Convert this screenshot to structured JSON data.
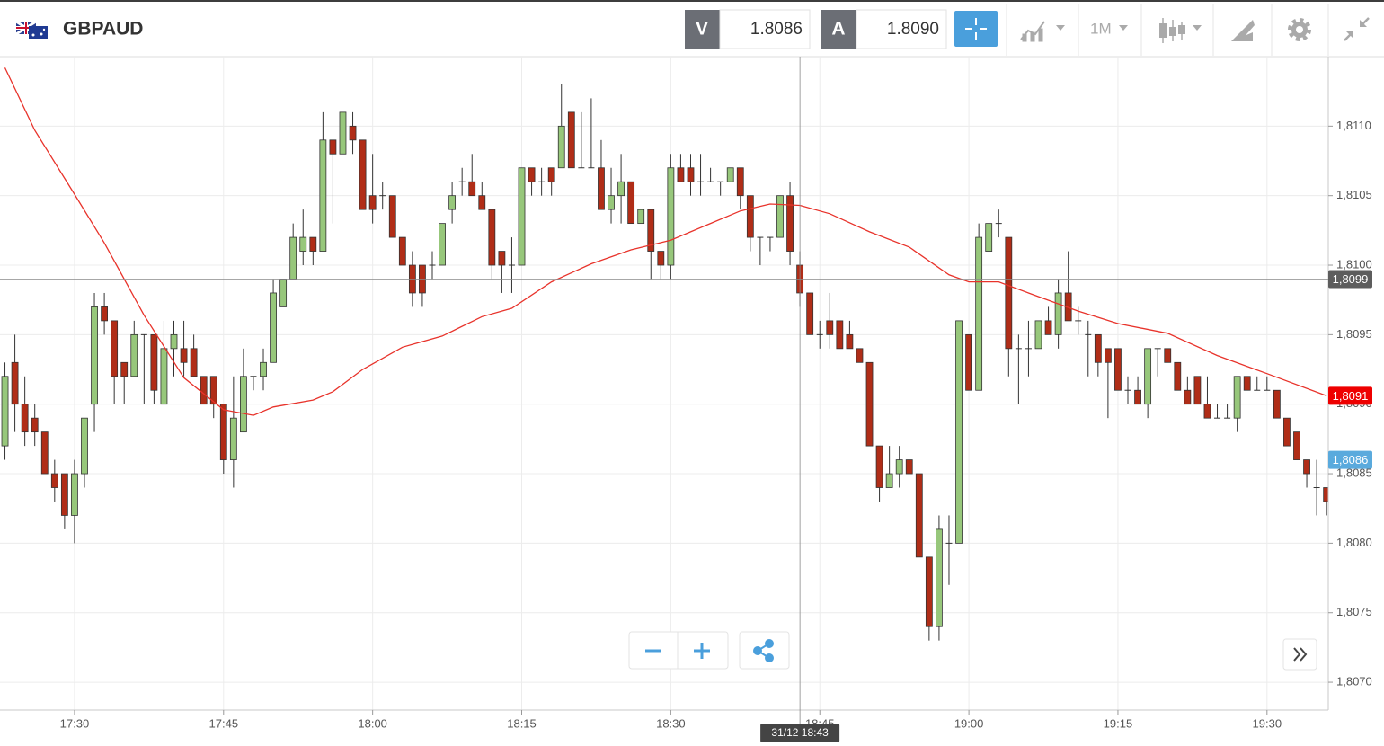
{
  "header": {
    "symbol": "GBPAUD",
    "sell_label": "V",
    "sell": "1.8086",
    "buy_label": "A",
    "buy": "1.8090",
    "timeframe": "1M"
  },
  "chart_data": {
    "type": "candlestick",
    "x": [
      "17:23",
      "17:24",
      "17:25",
      "17:26",
      "17:27",
      "17:28",
      "17:29",
      "17:30",
      "17:31",
      "17:32",
      "17:33",
      "17:34",
      "17:35",
      "17:36",
      "17:37",
      "17:38",
      "17:39",
      "17:40",
      "17:41",
      "17:42",
      "17:43",
      "17:44",
      "17:45",
      "17:46",
      "17:47",
      "17:48",
      "17:49",
      "17:50",
      "17:51",
      "17:52",
      "17:53",
      "17:54",
      "17:55",
      "17:56",
      "17:57",
      "17:58",
      "17:59",
      "18:00",
      "18:01",
      "18:02",
      "18:03",
      "18:04",
      "18:05",
      "18:06",
      "18:07",
      "18:08",
      "18:09",
      "18:10",
      "18:11",
      "18:12",
      "18:13",
      "18:14",
      "18:15",
      "18:16",
      "18:17",
      "18:18",
      "18:19",
      "18:20",
      "18:21",
      "18:22",
      "18:23",
      "18:24",
      "18:25",
      "18:26",
      "18:27",
      "18:28",
      "18:29",
      "18:30",
      "18:31",
      "18:32",
      "18:33",
      "18:34",
      "18:35",
      "18:36",
      "18:37",
      "18:38",
      "18:39",
      "18:40",
      "18:41",
      "18:42",
      "18:43",
      "18:44",
      "18:45",
      "18:46",
      "18:47",
      "18:48",
      "18:49",
      "18:50",
      "18:51",
      "18:52",
      "18:53",
      "18:54",
      "18:55",
      "18:56",
      "18:57",
      "18:58",
      "18:59",
      "19:00",
      "19:01",
      "19:02",
      "19:03",
      "19:04",
      "19:05",
      "19:06",
      "19:07",
      "19:08",
      "19:09",
      "19:10",
      "19:11",
      "19:12",
      "19:13",
      "19:14",
      "19:15",
      "19:16",
      "19:17",
      "19:18",
      "19:19",
      "19:20",
      "19:21",
      "19:22",
      "19:23",
      "19:24",
      "19:25",
      "19:26",
      "19:27",
      "19:28",
      "19:29",
      "19:30",
      "19:31",
      "19:32",
      "19:33",
      "19:34",
      "19:35",
      "19:36"
    ],
    "open": [
      1.8087,
      1.8093,
      1.809,
      1.8089,
      1.8088,
      1.8085,
      1.8085,
      1.8082,
      1.8085,
      1.809,
      1.8097,
      1.8096,
      1.8093,
      1.8092,
      1.8095,
      1.8095,
      1.809,
      1.8094,
      1.8094,
      1.8094,
      1.8092,
      1.8092,
      1.809,
      1.8086,
      1.8088,
      1.8092,
      1.8092,
      1.8093,
      1.8097,
      1.8099,
      1.8101,
      1.8102,
      1.8101,
      1.8109,
      1.8108,
      1.811,
      1.8109,
      1.8105,
      1.8105,
      1.8105,
      1.8102,
      1.81,
      1.81,
      1.81,
      1.81,
      1.8104,
      1.8106,
      1.8106,
      1.8105,
      1.8104,
      1.8101,
      1.81,
      1.81,
      1.8107,
      1.8106,
      1.8107,
      1.8107,
      1.8111,
      1.8107,
      1.8107,
      1.8107,
      1.8104,
      1.8105,
      1.8106,
      1.8103,
      1.8104,
      1.8101,
      1.81,
      1.8107,
      1.8107,
      1.8106,
      1.8106,
      1.8106,
      1.8106,
      1.8107,
      1.8105,
      1.8102,
      1.8102,
      1.8102,
      1.8105,
      1.81,
      1.8098,
      1.8095,
      1.8096,
      1.8096,
      1.8095,
      1.8094,
      1.8093,
      1.8087,
      1.8084,
      1.8085,
      1.8086,
      1.8085,
      1.8079,
      1.8074,
      1.808,
      1.808,
      1.8095,
      1.8091,
      1.8101,
      1.8103,
      1.8102,
      1.8094,
      1.8094,
      1.8094,
      1.8096,
      1.8095,
      1.8098,
      1.8096,
      1.8095,
      1.8095,
      1.8094,
      1.8094,
      1.8091,
      1.8091,
      1.809,
      1.8094,
      1.8094,
      1.8093,
      1.8091,
      1.8092,
      1.809,
      1.8089,
      1.8089,
      1.8089,
      1.8092,
      1.8091,
      1.8091,
      1.8091,
      1.8089,
      1.8088,
      1.8086,
      1.8084,
      1.8084
    ],
    "high": [
      1.8093,
      1.8095,
      1.8092,
      1.809,
      1.8088,
      1.8086,
      1.8085,
      1.8086,
      1.8089,
      1.8098,
      1.8098,
      1.8096,
      1.8093,
      1.8096,
      1.8095,
      1.8095,
      1.8096,
      1.8096,
      1.8096,
      1.8095,
      1.8092,
      1.8092,
      1.809,
      1.8092,
      1.8094,
      1.8092,
      1.8094,
      1.8099,
      1.8099,
      1.8103,
      1.8104,
      1.8102,
      1.8111,
      1.8109,
      1.8111,
      1.8111,
      1.8109,
      1.8108,
      1.8106,
      1.8105,
      1.8102,
      1.8101,
      1.81,
      1.8101,
      1.8103,
      1.8106,
      1.8107,
      1.8108,
      1.8106,
      1.8104,
      1.8101,
      1.8102,
      1.8107,
      1.8107,
      1.8107,
      1.8107,
      1.8113,
      1.8111,
      1.8111,
      1.8112,
      1.8109,
      1.8107,
      1.8108,
      1.8106,
      1.8104,
      1.8104,
      1.8101,
      1.8108,
      1.8108,
      1.8108,
      1.8108,
      1.8107,
      1.8106,
      1.8107,
      1.8107,
      1.8105,
      1.8102,
      1.8102,
      1.8105,
      1.8106,
      1.8101,
      1.8098,
      1.8096,
      1.8098,
      1.8096,
      1.8096,
      1.8094,
      1.8093,
      1.8087,
      1.8087,
      1.8087,
      1.8086,
      1.8085,
      1.8079,
      1.8082,
      1.8082,
      1.8096,
      1.8095,
      1.8103,
      1.8103,
      1.8104,
      1.8102,
      1.8095,
      1.8096,
      1.8096,
      1.8097,
      1.8099,
      1.8101,
      1.8097,
      1.8096,
      1.8095,
      1.8094,
      1.8094,
      1.8092,
      1.8092,
      1.8094,
      1.8094,
      1.8094,
      1.8093,
      1.8092,
      1.8092,
      1.8092,
      1.809,
      1.809,
      1.8092,
      1.8092,
      1.8092,
      1.8092,
      1.8091,
      1.8089,
      1.8088,
      1.8086,
      1.8086,
      1.8084
    ],
    "low": [
      1.8086,
      1.8088,
      1.8087,
      1.8087,
      1.8085,
      1.8083,
      1.8081,
      1.808,
      1.8084,
      1.8088,
      1.8095,
      1.809,
      1.809,
      1.8092,
      1.809,
      1.809,
      1.809,
      1.8092,
      1.8092,
      1.8092,
      1.809,
      1.8089,
      1.8085,
      1.8084,
      1.8088,
      1.8091,
      1.8091,
      1.8093,
      1.8097,
      1.8099,
      1.81,
      1.81,
      1.8101,
      1.8103,
      1.8108,
      1.8108,
      1.8104,
      1.8103,
      1.8104,
      1.8102,
      1.81,
      1.8097,
      1.8097,
      1.8099,
      1.81,
      1.8103,
      1.8105,
      1.8105,
      1.8104,
      1.8099,
      1.8098,
      1.8098,
      1.81,
      1.8105,
      1.8105,
      1.8105,
      1.8107,
      1.8107,
      1.8107,
      1.8107,
      1.8104,
      1.8103,
      1.8103,
      1.8103,
      1.8103,
      1.8099,
      1.8099,
      1.8099,
      1.8106,
      1.8105,
      1.8105,
      1.8106,
      1.8105,
      1.8106,
      1.8104,
      1.8101,
      1.81,
      1.8101,
      1.8102,
      1.81,
      1.8097,
      1.8095,
      1.8094,
      1.8094,
      1.8094,
      1.8094,
      1.8093,
      1.8087,
      1.8083,
      1.8084,
      1.8084,
      1.8085,
      1.8079,
      1.8073,
      1.8073,
      1.8077,
      1.808,
      1.8091,
      1.8091,
      1.8101,
      1.8102,
      1.8092,
      1.809,
      1.8092,
      1.8094,
      1.8095,
      1.8094,
      1.8096,
      1.8095,
      1.8092,
      1.8092,
      1.8089,
      1.8091,
      1.809,
      1.809,
      1.8089,
      1.8092,
      1.8093,
      1.8091,
      1.809,
      1.809,
      1.8089,
      1.8089,
      1.8089,
      1.8088,
      1.8091,
      1.8091,
      1.8091,
      1.8089,
      1.8087,
      1.8086,
      1.8084,
      1.8082,
      1.8082
    ],
    "close": [
      1.8092,
      1.809,
      1.8088,
      1.8088,
      1.8085,
      1.8084,
      1.8082,
      1.8085,
      1.8089,
      1.8097,
      1.8096,
      1.8092,
      1.8092,
      1.8095,
      1.8095,
      1.8091,
      1.8094,
      1.8095,
      1.8093,
      1.8092,
      1.809,
      1.809,
      1.8086,
      1.8089,
      1.8092,
      1.8092,
      1.8093,
      1.8098,
      1.8099,
      1.8102,
      1.8102,
      1.8101,
      1.8109,
      1.8108,
      1.8111,
      1.8109,
      1.8104,
      1.8104,
      1.8105,
      1.8102,
      1.81,
      1.8098,
      1.8098,
      1.81,
      1.8103,
      1.8105,
      1.8106,
      1.8105,
      1.8104,
      1.81,
      1.81,
      1.81,
      1.8107,
      1.8106,
      1.8106,
      1.8106,
      1.811,
      1.8107,
      1.8107,
      1.8107,
      1.8104,
      1.8105,
      1.8106,
      1.8103,
      1.8104,
      1.8101,
      1.81,
      1.8107,
      1.8106,
      1.8106,
      1.8106,
      1.8106,
      1.8106,
      1.8107,
      1.8105,
      1.8102,
      1.8102,
      1.8102,
      1.8105,
      1.8101,
      1.8098,
      1.8095,
      1.8095,
      1.8095,
      1.8094,
      1.8094,
      1.8093,
      1.8087,
      1.8084,
      1.8085,
      1.8086,
      1.8085,
      1.8079,
      1.8074,
      1.8081,
      1.808,
      1.8096,
      1.8091,
      1.8102,
      1.8103,
      1.8103,
      1.8094,
      1.8094,
      1.8094,
      1.8096,
      1.8095,
      1.8098,
      1.8096,
      1.8096,
      1.8095,
      1.8093,
      1.8093,
      1.8091,
      1.8091,
      1.809,
      1.8094,
      1.8094,
      1.8093,
      1.8091,
      1.809,
      1.809,
      1.8089,
      1.8089,
      1.8089,
      1.8092,
      1.8091,
      1.8091,
      1.8091,
      1.8089,
      1.8087,
      1.8086,
      1.8085,
      1.8084,
      1.8083
    ],
    "colors": {
      "up": "#97c77b",
      "down": "#b02d17"
    },
    "moving_average": {
      "color": "#e8332b",
      "x": [
        "17:23",
        "17:26",
        "17:30",
        "17:33",
        "17:37",
        "17:41",
        "17:45",
        "17:48",
        "17:50",
        "17:54",
        "17:56",
        "17:59",
        "18:03",
        "18:07",
        "18:11",
        "18:14",
        "18:18",
        "18:22",
        "18:26",
        "18:30",
        "18:34",
        "18:37",
        "18:40",
        "18:43",
        "18:46",
        "18:50",
        "18:54",
        "18:58",
        "19:00",
        "19:03",
        "19:06",
        "19:11",
        "19:15",
        "19:20",
        "19:25",
        "19:30",
        "19:36"
      ],
      "values": [
        1.81142,
        1.81097,
        1.81051,
        1.81016,
        1.80964,
        1.80919,
        1.80896,
        1.80892,
        1.80898,
        1.80903,
        1.80909,
        1.80925,
        1.80941,
        1.80949,
        1.80963,
        1.80969,
        1.80988,
        1.81001,
        1.81011,
        1.81018,
        1.8103,
        1.81039,
        1.81044,
        1.81043,
        1.81037,
        1.81024,
        1.81013,
        1.80993,
        1.80988,
        1.80988,
        1.8098,
        1.80967,
        1.80958,
        1.80951,
        1.80935,
        1.80922,
        1.80906
      ],
      "value_label": "1,8091"
    },
    "bid_marker": {
      "value": 1.8086,
      "label": "1,8086",
      "color": "#5aaadd"
    },
    "crosshair": {
      "x": "18:43",
      "time_label": "31/12 18:43",
      "price": 1.8099,
      "price_label": "1,8099"
    },
    "xlim": [
      "17:22:30",
      "19:36:10"
    ],
    "xticks": [
      "17:30",
      "17:45",
      "18:00",
      "18:15",
      "18:30",
      "18:45",
      "19:00",
      "19:15",
      "19:30"
    ],
    "ylim": [
      1.8068,
      1.8115
    ],
    "yticks": [
      {
        "value": 1.807,
        "label": "1,8070"
      },
      {
        "value": 1.8075,
        "label": "1,8075"
      },
      {
        "value": 1.808,
        "label": "1,8080"
      },
      {
        "value": 1.8085,
        "label": "1,8085"
      },
      {
        "value": 1.809,
        "label": "1,8090"
      },
      {
        "value": 1.8095,
        "label": "1,8095"
      },
      {
        "value": 1.81,
        "label": "1,8100"
      },
      {
        "value": 1.8105,
        "label": "1,8105"
      },
      {
        "value": 1.811,
        "label": "1,8110"
      }
    ],
    "grid": true
  }
}
